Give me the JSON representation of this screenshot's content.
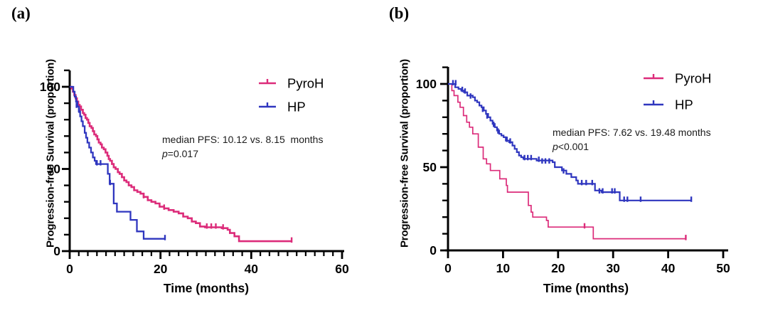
{
  "figure": {
    "background": "#ffffff",
    "colors": {
      "pyroh": "#DC2C7A",
      "hp": "#2F36BF",
      "axis": "#000000"
    }
  },
  "panels": [
    {
      "label": "(a)",
      "y_axis_title": "Progression-free Survival (proportion)",
      "x_axis_title": "Time (months)",
      "annotation": {
        "line1": "median PFS: 10.12 vs. 8.15  months",
        "p_symbol": "p",
        "p_rest": "=0.017"
      }
    },
    {
      "label": "(b)",
      "y_axis_title": "Progression-free Survival (proportion)",
      "x_axis_title": "Time (months)",
      "annotation": {
        "line1": "median PFS: 7.62 vs. 19.48 months",
        "p_symbol": "p",
        "p_rest": "<0.001"
      }
    }
  ],
  "chart_data": [
    {
      "type": "line",
      "subtype": "kaplan_meier_step",
      "panel": "a",
      "title": "",
      "xlabel": "Time (months)",
      "ylabel": "Progression-free Survival (proportion)",
      "xlim": [
        0,
        60
      ],
      "xticks": [
        0,
        20,
        40,
        60
      ],
      "x_minor_step": 2,
      "ylim": [
        0,
        100
      ],
      "yticks": [
        0,
        50,
        100
      ],
      "y_minor_step": 10,
      "grid": false,
      "legend_position": "upper right",
      "annotation": "median PFS: 10.12 vs. 8.15 months; p=0.017",
      "median_pfs_months": {
        "PyroH": 10.12,
        "HP": 8.15
      },
      "p_value": "0.017",
      "series": [
        {
          "name": "PyroH",
          "color": "#DC2C7A",
          "steps": [
            [
              0,
              100
            ],
            [
              0.4,
              99
            ],
            [
              0.7,
              97
            ],
            [
              1,
              95
            ],
            [
              1.3,
              93
            ],
            [
              1.6,
              91
            ],
            [
              1.9,
              89
            ],
            [
              2.2,
              88
            ],
            [
              2.5,
              86
            ],
            [
              2.9,
              84
            ],
            [
              3.2,
              83
            ],
            [
              3.5,
              81
            ],
            [
              3.8,
              80
            ],
            [
              4.1,
              78
            ],
            [
              4.4,
              76
            ],
            [
              4.8,
              75
            ],
            [
              5.1,
              73
            ],
            [
              5.4,
              71
            ],
            [
              5.8,
              70
            ],
            [
              6.1,
              68
            ],
            [
              6.4,
              66
            ],
            [
              6.8,
              65
            ],
            [
              7.1,
              63
            ],
            [
              7.5,
              62
            ],
            [
              7.9,
              60
            ],
            [
              8.3,
              58
            ],
            [
              8.6,
              56
            ],
            [
              8.9,
              55
            ],
            [
              9.3,
              53
            ],
            [
              9.7,
              51
            ],
            [
              10.1,
              50
            ],
            [
              10.6,
              48
            ],
            [
              11,
              47
            ],
            [
              11.5,
              45
            ],
            [
              12,
              43
            ],
            [
              12.5,
              42
            ],
            [
              13,
              40
            ],
            [
              13.6,
              39
            ],
            [
              14.2,
              37
            ],
            [
              14.9,
              36
            ],
            [
              15.6,
              35
            ],
            [
              16.3,
              33
            ],
            [
              17.2,
              31
            ],
            [
              18,
              30
            ],
            [
              18.9,
              29
            ],
            [
              19.8,
              27
            ],
            [
              20.8,
              26
            ],
            [
              21.8,
              25
            ],
            [
              22.9,
              24
            ],
            [
              24,
              23
            ],
            [
              25,
              21
            ],
            [
              26,
              20
            ],
            [
              26.9,
              18
            ],
            [
              27.8,
              17
            ],
            [
              28.7,
              15
            ],
            [
              29.8,
              14.5
            ],
            [
              33.5,
              14
            ],
            [
              34.8,
              13
            ],
            [
              35.3,
              11
            ],
            [
              36.3,
              9
            ],
            [
              37.3,
              6
            ],
            [
              48.9,
              6
            ]
          ],
          "censor_marks": [
            [
              16.3,
              33
            ],
            [
              20.8,
              26
            ],
            [
              30.2,
              14.5
            ],
            [
              31.2,
              14.5
            ],
            [
              32.2,
              14.5
            ],
            [
              33.8,
              14
            ],
            [
              48.9,
              6
            ]
          ]
        },
        {
          "name": "HP",
          "color": "#2F36BF",
          "steps": [
            [
              0,
              100
            ],
            [
              0.8,
              97
            ],
            [
              1.1,
              94
            ],
            [
              1.4,
              91
            ],
            [
              1.7,
              88
            ],
            [
              2,
              85
            ],
            [
              2.3,
              82
            ],
            [
              2.6,
              79
            ],
            [
              2.9,
              76
            ],
            [
              3.3,
              72
            ],
            [
              3.6,
              69
            ],
            [
              3.9,
              66
            ],
            [
              4.3,
              63
            ],
            [
              4.7,
              60
            ],
            [
              5.1,
              57
            ],
            [
              5.5,
              55
            ],
            [
              5.8,
              53
            ],
            [
              8.1,
              53
            ],
            [
              8.4,
              47
            ],
            [
              8.8,
              41
            ],
            [
              9.4,
              41
            ],
            [
              9.7,
              29
            ],
            [
              10.4,
              24
            ],
            [
              13.1,
              24
            ],
            [
              13.4,
              19
            ],
            [
              14.5,
              19
            ],
            [
              14.8,
              12
            ],
            [
              16,
              12
            ],
            [
              16.3,
              7.5
            ],
            [
              21,
              7.5
            ]
          ],
          "censor_marks": [
            [
              1.5,
              88
            ],
            [
              2.1,
              85
            ],
            [
              6,
              53
            ],
            [
              6.8,
              53
            ],
            [
              8.9,
              41
            ],
            [
              21,
              7.5
            ]
          ]
        }
      ]
    },
    {
      "type": "line",
      "subtype": "kaplan_meier_step",
      "panel": "b",
      "title": "",
      "xlabel": "Time (months)",
      "ylabel": "Progression-free Survival (proportion)",
      "xlim": [
        0,
        50
      ],
      "xticks": [
        0,
        10,
        20,
        30,
        40,
        50
      ],
      "x_minor_step": 0,
      "ylim": [
        0,
        100
      ],
      "yticks": [
        0,
        50,
        100
      ],
      "y_minor_step": 10,
      "grid": false,
      "legend_position": "upper right",
      "annotation": "median PFS: 7.62 vs. 19.48 months; p<0.001",
      "median_pfs_months": {
        "PyroH": 7.62,
        "HP": 19.48
      },
      "p_value": "<0.001",
      "series": [
        {
          "name": "PyroH",
          "color": "#DC2C7A",
          "steps": [
            [
              0,
              100
            ],
            [
              0.7,
              96
            ],
            [
              1.1,
              93
            ],
            [
              1.8,
              89
            ],
            [
              2.2,
              86
            ],
            [
              2.8,
              81
            ],
            [
              3.4,
              77
            ],
            [
              3.9,
              74
            ],
            [
              4.5,
              70
            ],
            [
              5.5,
              62
            ],
            [
              6.4,
              55
            ],
            [
              7,
              52
            ],
            [
              7.7,
              48
            ],
            [
              9.4,
              43
            ],
            [
              10.6,
              39
            ],
            [
              10.8,
              35
            ],
            [
              14.2,
              35
            ],
            [
              14.6,
              27
            ],
            [
              15.1,
              23
            ],
            [
              15.4,
              20
            ],
            [
              17.9,
              18
            ],
            [
              18.2,
              14
            ],
            [
              26.1,
              14
            ],
            [
              26.4,
              7
            ],
            [
              43.2,
              7
            ]
          ],
          "censor_marks": [
            [
              24.8,
              14
            ],
            [
              43.2,
              7
            ]
          ]
        },
        {
          "name": "HP",
          "color": "#2F36BF",
          "steps": [
            [
              0,
              100
            ],
            [
              1.3,
              98
            ],
            [
              1.9,
              97
            ],
            [
              2.4,
              96
            ],
            [
              2.9,
              95
            ],
            [
              3.5,
              93
            ],
            [
              4.5,
              92
            ],
            [
              4.9,
              90
            ],
            [
              5.3,
              89
            ],
            [
              5.7,
              87
            ],
            [
              6.1,
              86
            ],
            [
              6.5,
              84
            ],
            [
              6.9,
              82
            ],
            [
              7.3,
              80
            ],
            [
              7.7,
              78
            ],
            [
              8.1,
              76
            ],
            [
              8.5,
              74
            ],
            [
              8.9,
              72
            ],
            [
              9.3,
              70
            ],
            [
              9.7,
              69
            ],
            [
              10.1,
              68
            ],
            [
              10.5,
              66
            ],
            [
              11.1,
              65
            ],
            [
              11.7,
              63
            ],
            [
              12.1,
              61
            ],
            [
              12.5,
              59
            ],
            [
              12.9,
              57
            ],
            [
              13.3,
              56
            ],
            [
              13.7,
              55
            ],
            [
              15.6,
              55
            ],
            [
              16.1,
              54
            ],
            [
              19,
              53
            ],
            [
              19.4,
              50
            ],
            [
              20.7,
              48
            ],
            [
              21.5,
              46
            ],
            [
              22.4,
              44
            ],
            [
              23.3,
              42
            ],
            [
              23.6,
              40
            ],
            [
              26.4,
              40
            ],
            [
              26.7,
              36
            ],
            [
              27.9,
              35
            ],
            [
              30.9,
              35
            ],
            [
              31.2,
              30
            ],
            [
              44.2,
              30
            ]
          ],
          "censor_marks": [
            [
              0.9,
              100
            ],
            [
              1.4,
              100
            ],
            [
              2.6,
              96
            ],
            [
              3.1,
              95
            ],
            [
              4.1,
              92
            ],
            [
              6.3,
              84
            ],
            [
              7.1,
              80
            ],
            [
              8.3,
              75
            ],
            [
              9.1,
              71
            ],
            [
              10.7,
              66
            ],
            [
              11.3,
              65
            ],
            [
              13.9,
              55
            ],
            [
              14.5,
              55
            ],
            [
              15.1,
              55
            ],
            [
              16.5,
              54
            ],
            [
              17.1,
              53
            ],
            [
              17.7,
              53
            ],
            [
              18.4,
              53
            ],
            [
              21,
              47
            ],
            [
              24.3,
              40
            ],
            [
              25.1,
              40
            ],
            [
              26.2,
              40
            ],
            [
              27.5,
              35
            ],
            [
              28.1,
              35
            ],
            [
              29.8,
              35
            ],
            [
              30.3,
              35
            ],
            [
              32,
              30
            ],
            [
              32.6,
              30
            ],
            [
              35,
              30
            ],
            [
              44.2,
              30
            ]
          ]
        }
      ]
    }
  ]
}
